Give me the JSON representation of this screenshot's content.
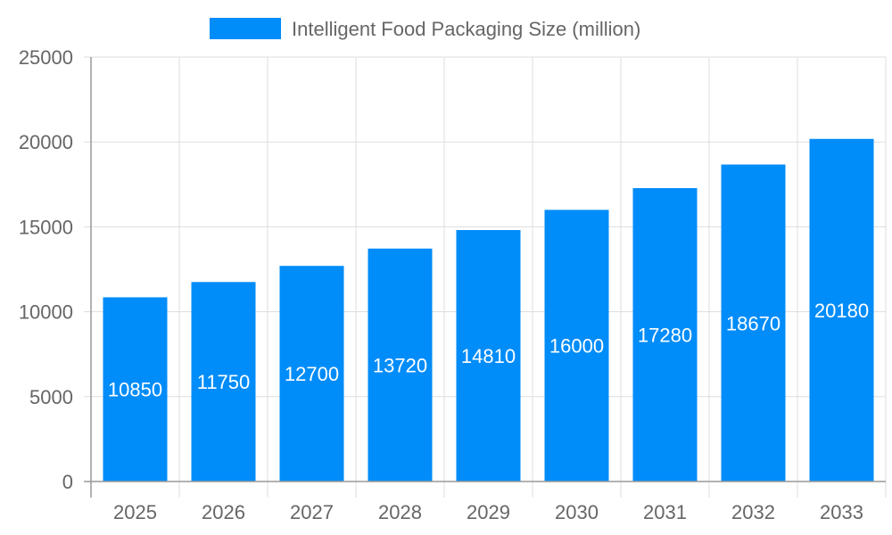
{
  "chart_data": {
    "type": "bar",
    "title": "",
    "xlabel": "",
    "ylabel": "",
    "categories": [
      "2025",
      "2026",
      "2027",
      "2028",
      "2029",
      "2030",
      "2031",
      "2032",
      "2033"
    ],
    "series": [
      {
        "name": "Intelligent Food Packaging Size (million)",
        "values": [
          10850,
          11750,
          12700,
          13720,
          14810,
          16000,
          17280,
          18670,
          20180
        ],
        "color": "#008cf9"
      }
    ],
    "ylim": [
      0,
      25000
    ],
    "yticks": [
      0,
      5000,
      10000,
      15000,
      20000,
      25000
    ],
    "grid": true,
    "legend": "top-center",
    "data_labels": true
  }
}
